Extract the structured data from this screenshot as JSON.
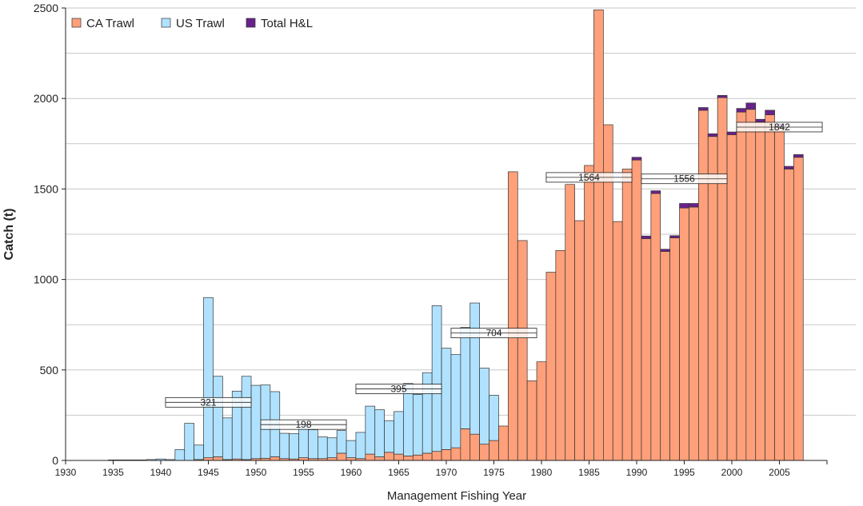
{
  "chart_data": {
    "type": "bar",
    "stacked": true,
    "title": "",
    "xlabel": "Management Fishing Year",
    "ylabel": "Catch (t)",
    "xlim": [
      1930,
      2010
    ],
    "ylim": [
      0,
      2500
    ],
    "x_ticks": [
      1930,
      1935,
      1940,
      1945,
      1950,
      1955,
      1960,
      1965,
      1970,
      1975,
      1980,
      1985,
      1990,
      1995,
      2000,
      2005
    ],
    "y_ticks": [
      0,
      500,
      1000,
      1500,
      2000,
      2500
    ],
    "grid": "horizontal",
    "legend_position": "top-left",
    "colors": {
      "ca_trawl": "#FFA07A",
      "us_trawl": "#B0E2FF",
      "total_hl": "#68228B"
    },
    "years": [
      1935,
      1936,
      1937,
      1938,
      1939,
      1940,
      1941,
      1942,
      1943,
      1944,
      1945,
      1946,
      1947,
      1948,
      1949,
      1950,
      1951,
      1952,
      1953,
      1954,
      1955,
      1956,
      1957,
      1958,
      1959,
      1960,
      1961,
      1962,
      1963,
      1964,
      1965,
      1966,
      1967,
      1968,
      1969,
      1970,
      1971,
      1972,
      1973,
      1974,
      1975,
      1976,
      1977,
      1978,
      1979,
      1980,
      1981,
      1982,
      1983,
      1984,
      1985,
      1986,
      1987,
      1988,
      1989,
      1990,
      1991,
      1992,
      1993,
      1994,
      1995,
      1996,
      1997,
      1998,
      1999,
      2000,
      2001,
      2002,
      2003,
      2004,
      2005,
      2006,
      2007
    ],
    "series": [
      {
        "name": "CA Trawl",
        "key": "ca_trawl",
        "values": [
          0,
          0,
          0,
          0,
          0,
          0,
          0,
          0,
          0,
          5,
          15,
          20,
          5,
          8,
          5,
          10,
          12,
          20,
          10,
          8,
          15,
          10,
          10,
          15,
          40,
          15,
          10,
          35,
          20,
          45,
          35,
          25,
          30,
          40,
          50,
          60,
          70,
          175,
          145,
          90,
          110,
          190,
          1595,
          1215,
          440,
          545,
          1040,
          1160,
          1525,
          1325,
          1630,
          2490,
          1855,
          1320,
          1610,
          1660,
          1225,
          1475,
          1155,
          1230,
          1395,
          1400,
          1935,
          1790,
          2005,
          1800,
          1925,
          1940,
          1870,
          1910,
          1840,
          1610,
          1675
        ]
      },
      {
        "name": "US Trawl",
        "key": "us_trawl",
        "values": [
          3,
          3,
          3,
          3,
          5,
          8,
          5,
          60,
          205,
          80,
          885,
          445,
          230,
          375,
          460,
          405,
          405,
          360,
          140,
          140,
          170,
          160,
          120,
          110,
          125,
          95,
          145,
          265,
          260,
          175,
          235,
          400,
          335,
          445,
          805,
          560,
          515,
          560,
          725,
          420,
          250,
          0,
          0,
          0,
          0,
          0,
          0,
          0,
          0,
          0,
          0,
          0,
          0,
          0,
          0,
          0,
          0,
          0,
          0,
          0,
          0,
          0,
          0,
          0,
          0,
          0,
          0,
          0,
          0,
          0,
          0,
          0,
          0
        ]
      },
      {
        "name": "Total H&L",
        "key": "total_hl",
        "values": [
          0,
          0,
          0,
          0,
          0,
          0,
          0,
          0,
          0,
          0,
          0,
          0,
          0,
          0,
          0,
          0,
          0,
          0,
          0,
          0,
          0,
          0,
          0,
          0,
          0,
          0,
          0,
          0,
          0,
          0,
          0,
          0,
          0,
          0,
          0,
          0,
          0,
          0,
          0,
          0,
          0,
          0,
          0,
          0,
          0,
          0,
          0,
          0,
          0,
          0,
          0,
          0,
          0,
          0,
          0,
          15,
          15,
          15,
          12,
          12,
          25,
          20,
          15,
          15,
          12,
          15,
          20,
          35,
          15,
          25,
          20,
          15,
          15
        ]
      }
    ],
    "annotations": [
      {
        "label": "321",
        "x_start": 1941,
        "x_end": 1950,
        "value": 321
      },
      {
        "label": "198",
        "x_start": 1951,
        "x_end": 1960,
        "value": 198
      },
      {
        "label": "395",
        "x_start": 1961,
        "x_end": 1970,
        "value": 395
      },
      {
        "label": "704",
        "x_start": 1971,
        "x_end": 1980,
        "value": 704
      },
      {
        "label": "1564",
        "x_start": 1981,
        "x_end": 1990,
        "value": 1564
      },
      {
        "label": "1556",
        "x_start": 1991,
        "x_end": 2000,
        "value": 1556
      },
      {
        "label": "1842",
        "x_start": 2001,
        "x_end": 2010,
        "value": 1842
      }
    ]
  }
}
